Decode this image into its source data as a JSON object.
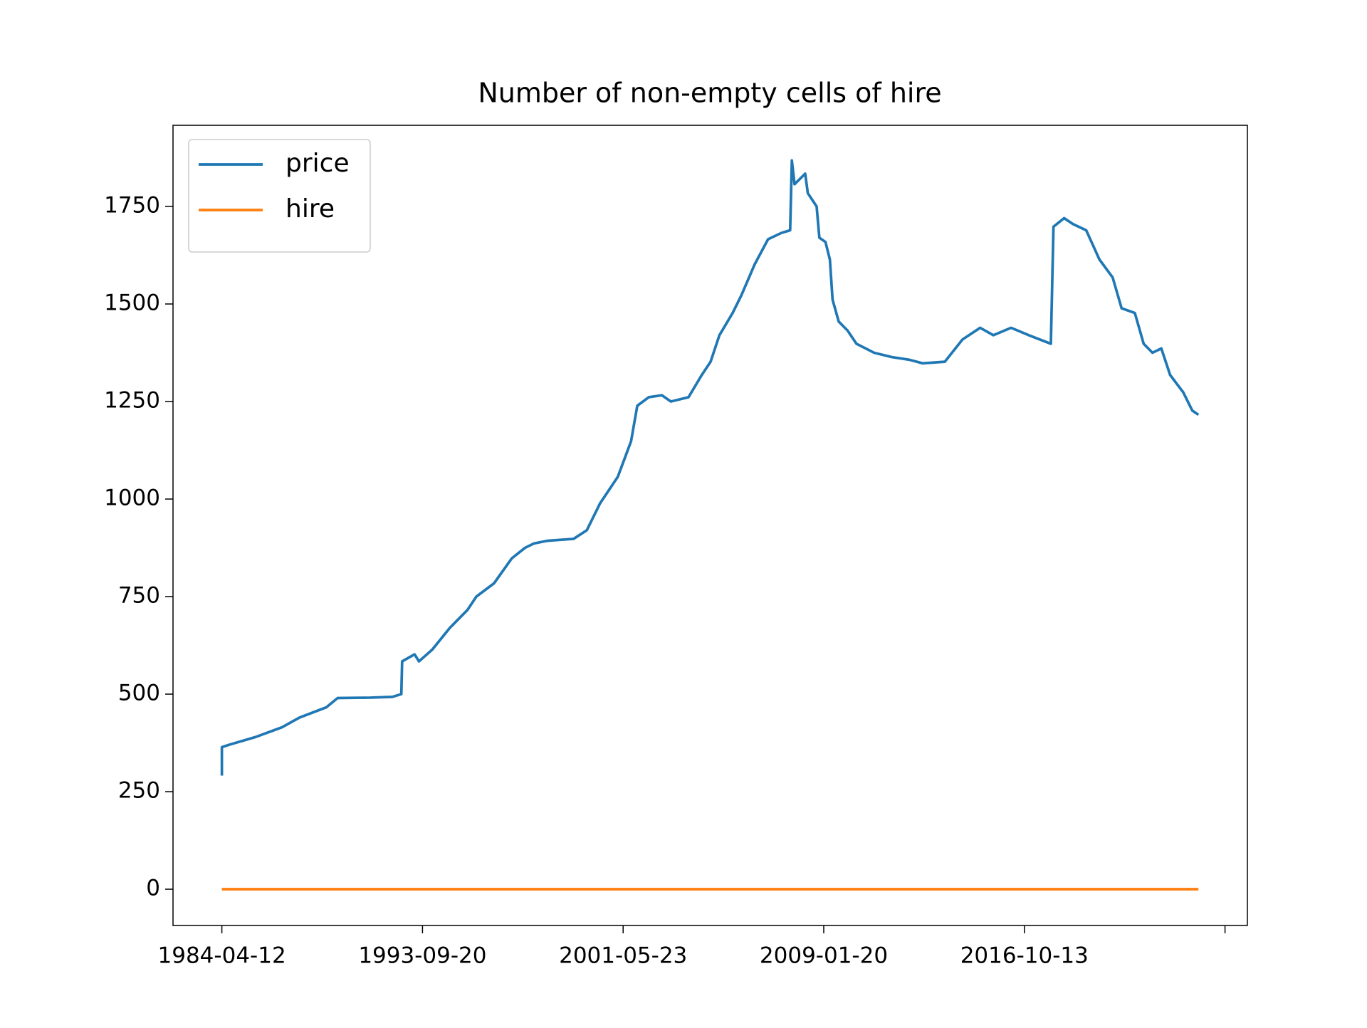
{
  "chart_data": {
    "type": "line",
    "title": "Number of non-empty cells of hire",
    "xlim": [
      -487,
      10223
    ],
    "xticks": [
      {
        "value": 0,
        "label": "1984-04-12"
      },
      {
        "value": 2000,
        "label": "1993-09-20"
      },
      {
        "value": 4000,
        "label": "2001-05-23"
      },
      {
        "value": 6000,
        "label": "2009-01-20"
      },
      {
        "value": 8000,
        "label": "2016-10-13"
      },
      {
        "value": 10000,
        "label": null
      }
    ],
    "ylim": [
      -93,
      1958
    ],
    "yticks": [
      0,
      250,
      500,
      750,
      1000,
      1250,
      1500,
      1750
    ],
    "legend": "upper left",
    "series": [
      {
        "name": "price",
        "color": "#1f77b4",
        "x": [
          0,
          0,
          70,
          335,
          599,
          775,
          1040,
          1154,
          1480,
          1700,
          1789,
          1797,
          1921,
          1965,
          2097,
          2273,
          2449,
          2537,
          2713,
          2890,
          3022,
          3110,
          3242,
          3506,
          3638,
          3770,
          3947,
          4079,
          4141,
          4255,
          4387,
          4476,
          4652,
          4784,
          4872,
          4960,
          5092,
          5180,
          5312,
          5445,
          5577,
          5665,
          5682,
          5709,
          5815,
          5841,
          5929,
          5956,
          6017,
          6061,
          6088,
          6149,
          6237,
          6326,
          6502,
          6678,
          6854,
          6986,
          7207,
          7383,
          7559,
          7691,
          7867,
          8044,
          8264,
          8290,
          8396,
          8484,
          8616,
          8748,
          8880,
          8969,
          9101,
          9189,
          9277,
          9365,
          9453,
          9585,
          9673,
          9735
        ],
        "values": [
          291,
          364,
          370,
          390,
          415,
          440,
          466,
          490,
          491,
          493,
          500,
          584,
          602,
          584,
          614,
          670,
          716,
          750,
          784,
          848,
          875,
          886,
          893,
          898,
          920,
          989,
          1057,
          1148,
          1239,
          1261,
          1266,
          1250,
          1261,
          1318,
          1352,
          1420,
          1477,
          1523,
          1602,
          1666,
          1682,
          1689,
          1868,
          1807,
          1834,
          1784,
          1750,
          1670,
          1659,
          1614,
          1511,
          1455,
          1432,
          1398,
          1375,
          1364,
          1357,
          1348,
          1352,
          1409,
          1439,
          1420,
          1439,
          1420,
          1398,
          1698,
          1720,
          1705,
          1689,
          1614,
          1568,
          1489,
          1477,
          1398,
          1375,
          1386,
          1318,
          1273,
          1227,
          1216
        ]
      },
      {
        "name": "hire",
        "color": "#ff7f0e",
        "x": [
          0,
          9735
        ],
        "values": [
          0,
          0
        ]
      }
    ]
  }
}
